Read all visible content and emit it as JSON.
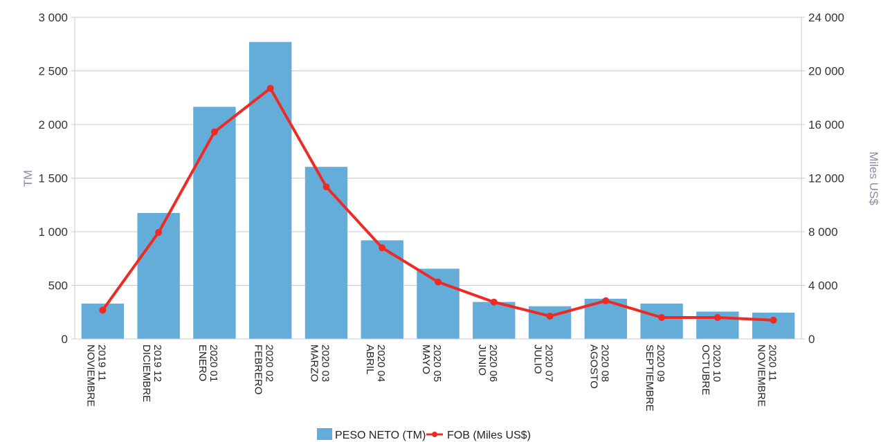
{
  "chart_data": {
    "type": "bar",
    "categories": [
      [
        "2019 11",
        "NOVIEMBRE"
      ],
      [
        "2019 12",
        "DICIEMBRE"
      ],
      [
        "2020 01",
        "ENERO"
      ],
      [
        "2020 02",
        "FEBRERO"
      ],
      [
        "2020 03",
        "MARZO"
      ],
      [
        "2020 04",
        "ABRIL"
      ],
      [
        "2020 05",
        "MAYO"
      ],
      [
        "2020 06",
        "JUNIO"
      ],
      [
        "2020 07",
        "JULIO"
      ],
      [
        "2020 08",
        "AGOSTO"
      ],
      [
        "2020 09",
        "SEPTIEMBRE"
      ],
      [
        "2020 10",
        "OCTUBRE"
      ],
      [
        "2020 11",
        "NOVIEMBRE"
      ]
    ],
    "series": [
      {
        "name": "PESO NETO (TM)",
        "type": "bar",
        "axis": "left",
        "color": "#63add8",
        "values": [
          330,
          1175,
          2165,
          2770,
          1605,
          920,
          655,
          345,
          305,
          375,
          330,
          255,
          245
        ]
      },
      {
        "name": "FOB (Miles US$)",
        "type": "line",
        "axis": "right",
        "color": "#ee2a24",
        "values": [
          2150,
          7950,
          15450,
          18700,
          11350,
          6800,
          4250,
          2750,
          1700,
          2850,
          1600,
          1600,
          1400
        ]
      }
    ],
    "ylabel": "TM",
    "y2label": "Miles US$",
    "ylim": [
      0,
      3000
    ],
    "y2lim": [
      0,
      24000
    ],
    "yticks": [
      "0",
      "500",
      "1 000",
      "1 500",
      "2 000",
      "2 500",
      "3 000"
    ],
    "y2ticks": [
      "0",
      "4 000",
      "8 000",
      "12 000",
      "16 000",
      "20 000",
      "24 000"
    ],
    "grid": true,
    "legend_position": "bottom"
  },
  "colors": {
    "grid": "#c9c7df",
    "axis_label": "#8d8aab",
    "tick_text": "#333333"
  }
}
